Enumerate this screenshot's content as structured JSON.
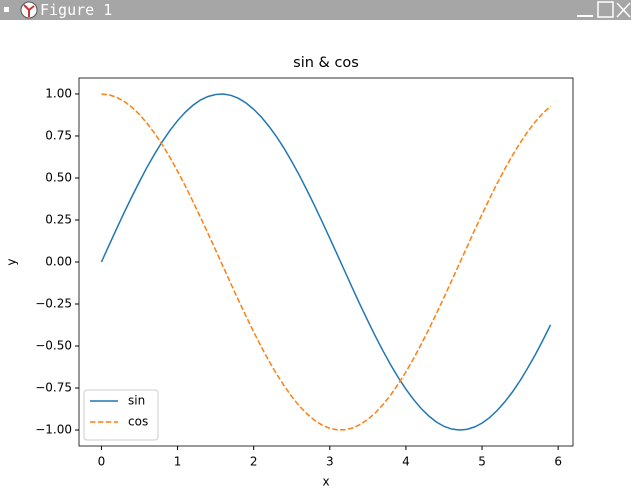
{
  "window": {
    "title": "Figure 1"
  },
  "chart_data": {
    "type": "line",
    "title": "sin & cos",
    "x_label": "x",
    "y_label": "y",
    "x": [
      0,
      0.1,
      0.2,
      0.3,
      0.4,
      0.5,
      0.6,
      0.7,
      0.8,
      0.9,
      1,
      1.1,
      1.2,
      1.3,
      1.4,
      1.5,
      1.6,
      1.7,
      1.8,
      1.9,
      2,
      2.1,
      2.2,
      2.3,
      2.4,
      2.5,
      2.6,
      2.7,
      2.8,
      2.9,
      3,
      3.1,
      3.2,
      3.3,
      3.4,
      3.5,
      3.6,
      3.7,
      3.8,
      3.9,
      4,
      4.1,
      4.2,
      4.3,
      4.4,
      4.5,
      4.6,
      4.7,
      4.8,
      4.9,
      5,
      5.1,
      5.2,
      5.3,
      5.4,
      5.5,
      5.6,
      5.7,
      5.8,
      5.9
    ],
    "series": [
      {
        "name": "sin",
        "color": "#1f77b4",
        "linestyle": "solid",
        "values": [
          0,
          0.1,
          0.199,
          0.296,
          0.389,
          0.479,
          0.565,
          0.644,
          0.717,
          0.783,
          0.841,
          0.891,
          0.932,
          0.964,
          0.985,
          0.997,
          1.0,
          0.992,
          0.974,
          0.946,
          0.909,
          0.863,
          0.808,
          0.746,
          0.676,
          0.598,
          0.516,
          0.427,
          0.335,
          0.239,
          0.141,
          0.042,
          -0.058,
          -0.158,
          -0.256,
          -0.351,
          -0.443,
          -0.53,
          -0.612,
          -0.688,
          -0.757,
          -0.818,
          -0.872,
          -0.916,
          -0.952,
          -0.978,
          -0.994,
          -1.0,
          -0.996,
          -0.982,
          -0.959,
          -0.926,
          -0.883,
          -0.832,
          -0.773,
          -0.706,
          -0.631,
          -0.551,
          -0.465,
          -0.374
        ]
      },
      {
        "name": "cos",
        "color": "#ff7f0e",
        "linestyle": "dashed",
        "values": [
          1,
          0.995,
          0.98,
          0.955,
          0.921,
          0.878,
          0.825,
          0.765,
          0.697,
          0.622,
          0.54,
          0.454,
          0.362,
          0.267,
          0.17,
          0.071,
          -0.029,
          -0.129,
          -0.227,
          -0.323,
          -0.416,
          -0.505,
          -0.589,
          -0.666,
          -0.737,
          -0.801,
          -0.857,
          -0.904,
          -0.942,
          -0.971,
          -0.99,
          -0.999,
          -0.998,
          -0.988,
          -0.967,
          -0.936,
          -0.897,
          -0.848,
          -0.791,
          -0.726,
          -0.654,
          -0.575,
          -0.49,
          -0.401,
          -0.307,
          -0.211,
          -0.112,
          -0.012,
          0.087,
          0.187,
          0.284,
          0.378,
          0.469,
          0.554,
          0.635,
          0.709,
          0.776,
          0.835,
          0.886,
          0.927
        ]
      }
    ],
    "xlim": [
      -0.295,
      6.195
    ],
    "xticks": [
      0,
      1,
      2,
      3,
      4,
      5,
      6
    ],
    "ylim": [
      -1.095,
      1.095
    ],
    "yticks": [
      {
        "value": -1,
        "label": "−1.00"
      },
      {
        "value": -0.75,
        "label": "−0.75"
      },
      {
        "value": -0.5,
        "label": "−0.50"
      },
      {
        "value": -0.25,
        "label": "−0.25"
      },
      {
        "value": 0,
        "label": "0.00"
      },
      {
        "value": 0.25,
        "label": "0.25"
      },
      {
        "value": 0.5,
        "label": "0.50"
      },
      {
        "value": 0.75,
        "label": "0.75"
      },
      {
        "value": 1,
        "label": "1.00"
      }
    ],
    "grid": false,
    "legend": "lower left"
  }
}
